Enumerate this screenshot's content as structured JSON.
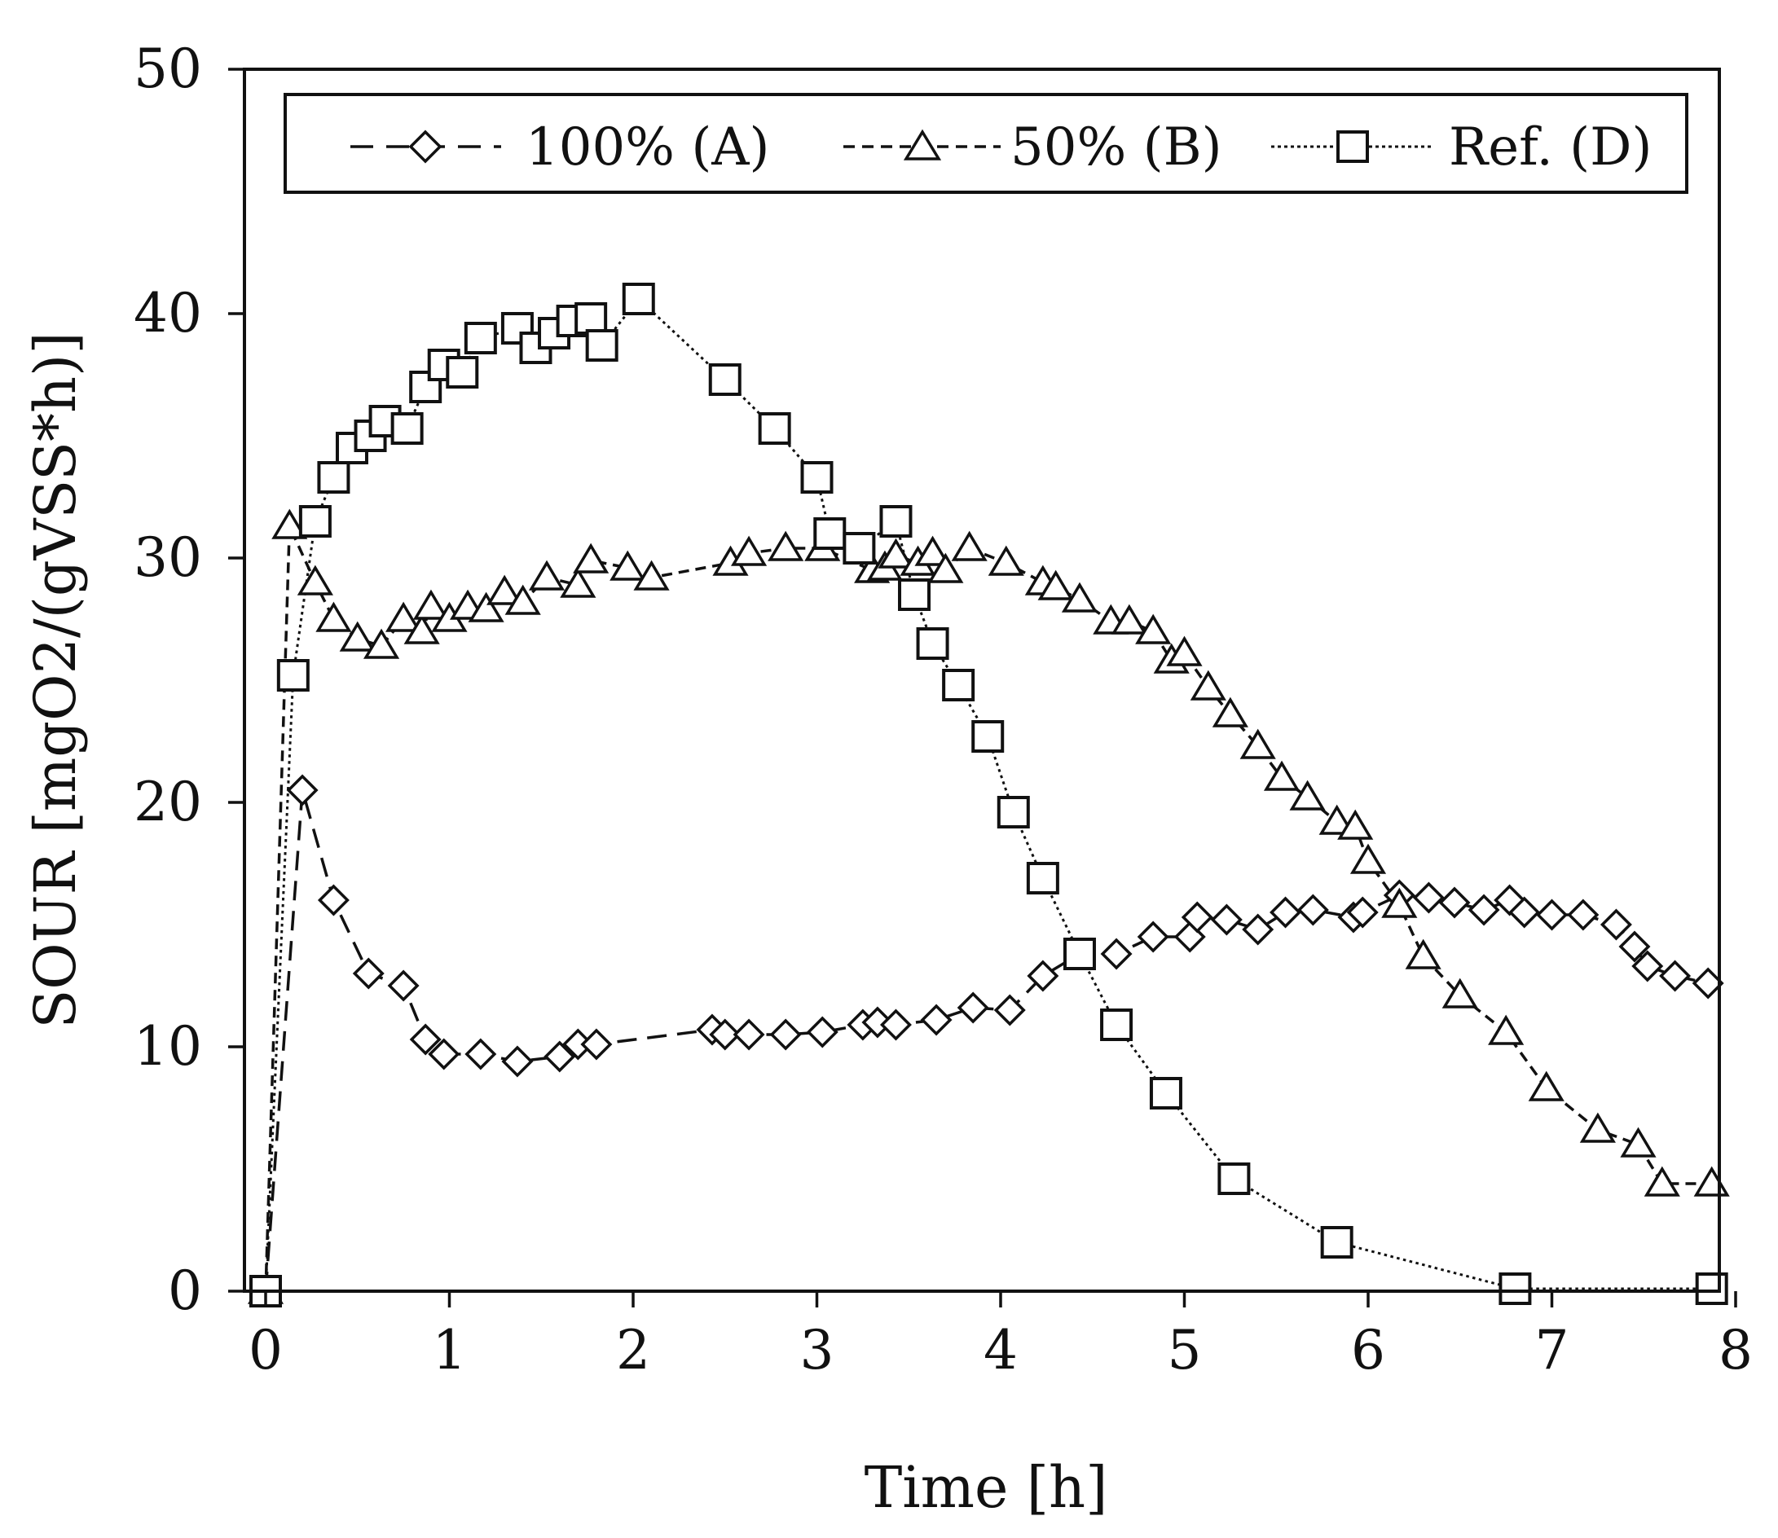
{
  "chart_data": {
    "type": "line",
    "title": "",
    "xlabel": "Time [h]",
    "ylabel": "SOUR [mgO2/(gVSS*h)]",
    "xlim": [
      0,
      8
    ],
    "ylim": [
      0,
      50
    ],
    "xticks": [
      "0",
      "1",
      "2",
      "3",
      "4",
      "5",
      "6",
      "7",
      "8"
    ],
    "yticks": [
      "0",
      "10",
      "20",
      "30",
      "40",
      "50"
    ],
    "grid": false,
    "legend_position": "top",
    "series": [
      {
        "name": "100% (A)",
        "marker": "diamond",
        "line_style": "dashed",
        "x": [
          0,
          0.2,
          0.37,
          0.56,
          0.75,
          0.87,
          0.97,
          1.17,
          1.37,
          1.6,
          1.7,
          1.8,
          2.43,
          2.5,
          2.63,
          2.83,
          3.03,
          3.25,
          3.33,
          3.43,
          3.65,
          3.85,
          4.05,
          4.23,
          4.43,
          4.63,
          4.83,
          5.03,
          5.07,
          5.23,
          5.4,
          5.55,
          5.7,
          5.92,
          5.97,
          6.17,
          6.33,
          6.47,
          6.63,
          6.77,
          6.85,
          7.0,
          7.17,
          7.35,
          7.45,
          7.52,
          7.67,
          7.85
        ],
        "y": [
          0,
          20.5,
          16.0,
          13.0,
          12.5,
          10.3,
          9.7,
          9.7,
          9.4,
          9.6,
          10.1,
          10.1,
          10.7,
          10.5,
          10.5,
          10.5,
          10.6,
          10.9,
          11.0,
          10.9,
          11.1,
          11.6,
          11.5,
          12.9,
          13.8,
          13.8,
          14.5,
          14.5,
          15.3,
          15.2,
          14.8,
          15.5,
          15.6,
          15.3,
          15.5,
          16.2,
          16.1,
          15.9,
          15.6,
          16.0,
          15.5,
          15.4,
          15.4,
          15.0,
          14.1,
          13.3,
          12.9,
          12.6
        ]
      },
      {
        "name": "50% (B)",
        "marker": "triangle",
        "line_style": "dashed",
        "x": [
          0,
          0.13,
          0.27,
          0.37,
          0.5,
          0.63,
          0.75,
          0.85,
          0.9,
          1.0,
          1.1,
          1.2,
          1.3,
          1.4,
          1.53,
          1.7,
          1.77,
          1.97,
          2.1,
          2.53,
          2.63,
          2.83,
          3.03,
          3.3,
          3.37,
          3.43,
          3.55,
          3.63,
          3.7,
          3.83,
          4.03,
          4.23,
          4.3,
          4.43,
          4.6,
          4.7,
          4.83,
          4.93,
          5.0,
          5.13,
          5.25,
          5.4,
          5.53,
          5.67,
          5.83,
          5.93,
          6.0,
          6.17,
          6.3,
          6.5,
          6.75,
          6.97,
          7.25,
          7.47,
          7.6,
          7.87
        ],
        "y": [
          0,
          31.3,
          29.0,
          27.5,
          26.7,
          26.4,
          27.5,
          27.0,
          28.0,
          27.5,
          28.0,
          27.9,
          28.6,
          28.2,
          29.2,
          28.9,
          29.9,
          29.6,
          29.2,
          29.8,
          30.2,
          30.4,
          30.4,
          29.5,
          29.6,
          30.1,
          29.8,
          30.2,
          29.5,
          30.4,
          29.8,
          29.0,
          28.8,
          28.3,
          27.4,
          27.4,
          27.0,
          25.8,
          26.1,
          24.7,
          23.6,
          22.3,
          21.0,
          20.2,
          19.2,
          19.0,
          17.6,
          15.8,
          13.7,
          12.1,
          10.6,
          8.3,
          6.6,
          6.0,
          4.4,
          4.4
        ]
      },
      {
        "name": "Ref. (D)",
        "marker": "square",
        "line_style": "dotted",
        "x": [
          0,
          0.15,
          0.27,
          0.37,
          0.47,
          0.57,
          0.65,
          0.77,
          0.87,
          0.97,
          1.07,
          1.17,
          1.37,
          1.47,
          1.57,
          1.67,
          1.77,
          1.83,
          2.03,
          2.5,
          2.77,
          3.0,
          3.07,
          3.23,
          3.43,
          3.53,
          3.63,
          3.77,
          3.93,
          4.07,
          4.23,
          4.43,
          4.63,
          4.9,
          5.27,
          5.83,
          6.8,
          7.87
        ],
        "y": [
          0,
          25.2,
          31.5,
          33.3,
          34.5,
          35.0,
          35.6,
          35.3,
          37.0,
          37.9,
          37.6,
          39.0,
          39.4,
          38.6,
          39.2,
          39.7,
          39.8,
          38.7,
          40.6,
          37.3,
          35.3,
          33.3,
          31.0,
          30.4,
          31.5,
          28.5,
          26.5,
          24.8,
          22.7,
          19.6,
          16.9,
          13.8,
          10.9,
          8.1,
          4.6,
          2.0,
          0.1,
          0.1
        ]
      }
    ]
  }
}
